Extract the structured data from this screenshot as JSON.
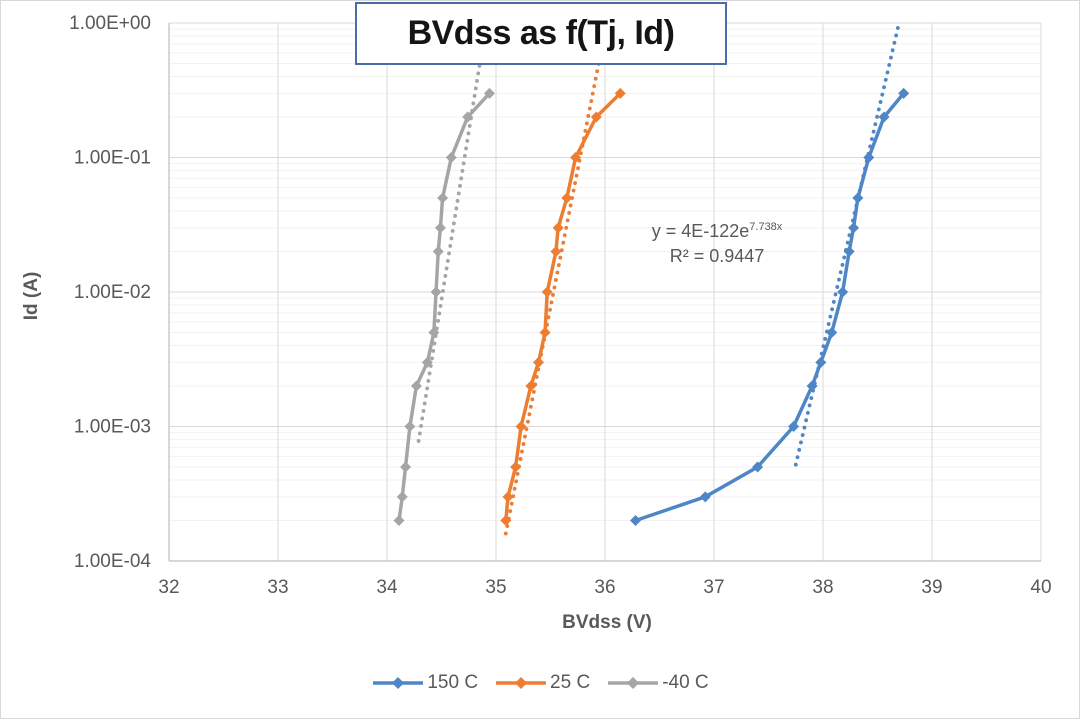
{
  "title": "BVdss as f(Tj, Id)",
  "annotation": {
    "equation_base": "y = 4E-122e",
    "equation_exponent": "7.738x",
    "r_squared": "R² = 0.9447"
  },
  "colors": {
    "blue": "#4E86C6",
    "orange": "#ED7D31",
    "gray": "#A5A5A5",
    "title_border": "#4A6DA8",
    "axis_text": "#595959",
    "grid_major": "#D9D9D9",
    "grid_minor": "#F2F2F2",
    "axis_line": "#BFBFBF"
  },
  "legend": {
    "items": [
      {
        "label": "150 C",
        "color": "#4E86C6"
      },
      {
        "label": "25 C",
        "color": "#ED7D31"
      },
      {
        "label": "-40 C",
        "color": "#A5A5A5"
      }
    ]
  },
  "chart_data": {
    "type": "line",
    "title": "BVdss as f(Tj, Id)",
    "xlabel": "BVdss (V)",
    "ylabel": "Id (A)",
    "xlim": [
      32,
      40
    ],
    "x_ticks": [
      32,
      33,
      34,
      35,
      36,
      37,
      38,
      39,
      40
    ],
    "y_scale": "log",
    "ylim": [
      0.0001,
      1.0
    ],
    "ylim_log_exponents": [
      -4,
      0
    ],
    "y_ticks": [
      "1.00E+00",
      "1.00E-01",
      "1.00E-02",
      "1.00E-03",
      "1.00E-04"
    ],
    "grid": true,
    "minor_log_grid": true,
    "legend_position": "bottom",
    "marker": "diamond",
    "id_values_A": [
      0.0002,
      0.0003,
      0.0005,
      0.001,
      0.002,
      0.003,
      0.005,
      0.01,
      0.02,
      0.03,
      0.05,
      0.1,
      0.2,
      0.3
    ],
    "series": [
      {
        "name": "150 C",
        "color": "#4E86C6",
        "bvdss_V": [
          36.28,
          36.92,
          37.4,
          37.73,
          37.9,
          37.98,
          38.08,
          38.18,
          38.24,
          38.28,
          38.32,
          38.42,
          38.56,
          38.74
        ]
      },
      {
        "name": "25 C",
        "color": "#ED7D31",
        "bvdss_V": [
          35.09,
          35.11,
          35.18,
          35.23,
          35.32,
          35.39,
          35.45,
          35.47,
          35.55,
          35.57,
          35.65,
          35.73,
          35.92,
          36.14
        ]
      },
      {
        "name": "-40 C",
        "color": "#A5A5A5",
        "bvdss_V": [
          34.11,
          34.14,
          34.17,
          34.21,
          34.27,
          34.37,
          34.43,
          34.45,
          34.47,
          34.49,
          34.51,
          34.59,
          34.74,
          34.94
        ]
      }
    ],
    "trendlines": [
      {
        "series": "150 C",
        "style": "dotted",
        "x1": 37.75,
        "y1": 0.00052,
        "x2": 38.7,
        "y2": 1.02
      },
      {
        "series": "25 C",
        "style": "dotted",
        "x1": 35.09,
        "y1": 0.00016,
        "x2": 35.97,
        "y2": 0.65
      },
      {
        "series": "-40 C",
        "style": "dotted",
        "x1": 34.29,
        "y1": 0.00078,
        "x2": 34.85,
        "y2": 0.49
      }
    ]
  }
}
